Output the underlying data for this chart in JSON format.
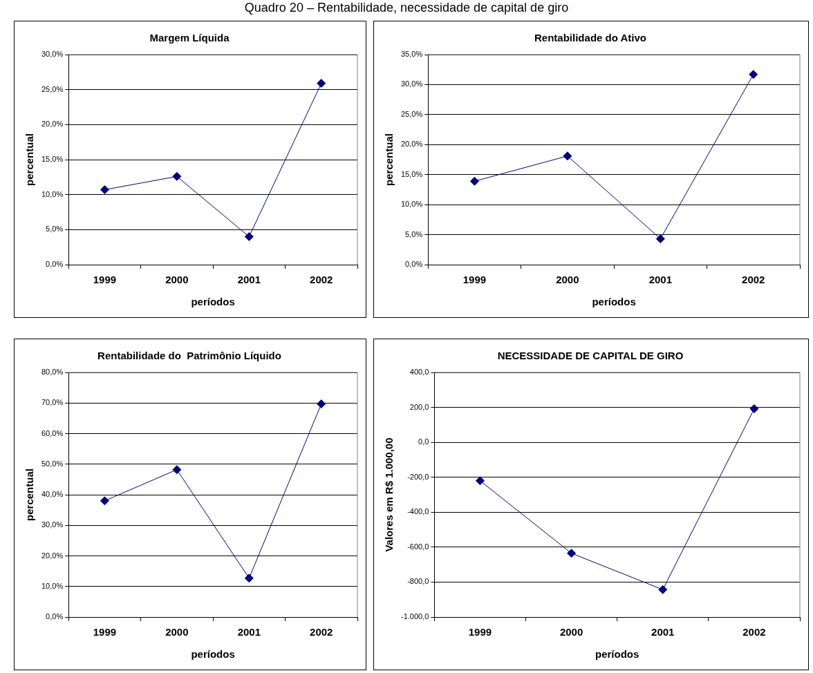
{
  "chart_data": [
    {
      "type": "other",
      "title": "Quadro 20 – Rentabilidade, necessidade de capital de giro"
    },
    {
      "type": "line",
      "title": "Margem Líquida",
      "xlabel": "períodos",
      "ylabel": "percentual",
      "categories": [
        "1999",
        "2000",
        "2001",
        "2002"
      ],
      "series": [
        {
          "color": "#000080",
          "values": [
            10.7,
            12.6,
            4.0,
            25.9
          ]
        }
      ],
      "ylim": [
        0,
        30
      ],
      "yticks": [
        {
          "value": 0,
          "label": "0,0%"
        },
        {
          "value": 5,
          "label": "5,0%"
        },
        {
          "value": 10,
          "label": "10,0%"
        },
        {
          "value": 15,
          "label": "15,0%"
        },
        {
          "value": 20,
          "label": "20,0%"
        },
        {
          "value": 25,
          "label": "25,0%"
        },
        {
          "value": 30,
          "label": "30,0%"
        }
      ],
      "grid": "y",
      "marker": "diamond",
      "line_style": "solid",
      "legend": false
    },
    {
      "type": "line",
      "title": "Rentabilidade do Ativo",
      "xlabel": "períodos",
      "ylabel": "percentual",
      "categories": [
        "1999",
        "2000",
        "2001",
        "2002"
      ],
      "series": [
        {
          "color": "#000080",
          "values": [
            13.9,
            18.1,
            4.3,
            31.7
          ]
        }
      ],
      "ylim": [
        0,
        35
      ],
      "yticks": [
        {
          "value": 0,
          "label": "0,0%"
        },
        {
          "value": 5,
          "label": "5,0%"
        },
        {
          "value": 10,
          "label": "10,0%"
        },
        {
          "value": 15,
          "label": "15,0%"
        },
        {
          "value": 20,
          "label": "20,0%"
        },
        {
          "value": 25,
          "label": "25,0%"
        },
        {
          "value": 30,
          "label": "30,0%"
        },
        {
          "value": 35,
          "label": "35,0%"
        }
      ],
      "grid": "y",
      "marker": "diamond",
      "line_style": "solid",
      "legend": false
    },
    {
      "type": "line",
      "title": "Rentabilidade do  Patrimônio Líquido",
      "xlabel": "períodos",
      "ylabel": "percentual",
      "categories": [
        "1999",
        "2000",
        "2001",
        "2002"
      ],
      "series": [
        {
          "color": "#000080",
          "values": [
            38.0,
            48.2,
            12.7,
            69.7
          ]
        }
      ],
      "ylim": [
        0,
        80
      ],
      "yticks": [
        {
          "value": 0,
          "label": "0,0%"
        },
        {
          "value": 10,
          "label": "10,0%"
        },
        {
          "value": 20,
          "label": "20,0%"
        },
        {
          "value": 30,
          "label": "30,0%"
        },
        {
          "value": 40,
          "label": "40,0%"
        },
        {
          "value": 50,
          "label": "50,0%"
        },
        {
          "value": 60,
          "label": "60,0%"
        },
        {
          "value": 70,
          "label": "70,0%"
        },
        {
          "value": 80,
          "label": "80,0%"
        }
      ],
      "grid": "y",
      "marker": "diamond",
      "line_style": "solid",
      "legend": false
    },
    {
      "type": "line",
      "title": "NECESSIDADE DE CAPITAL DE GIRO",
      "xlabel": "períodos",
      "ylabel": "Valores em R$ 1.000,00",
      "categories": [
        "1999",
        "2000",
        "2001",
        "2002"
      ],
      "series": [
        {
          "color": "#000080",
          "values": [
            -220,
            -635,
            -843,
            192
          ]
        }
      ],
      "ylim": [
        -1000,
        400
      ],
      "yticks": [
        {
          "value": -1000,
          "label": "-1.000,0"
        },
        {
          "value": -800,
          "label": "-800,0"
        },
        {
          "value": -600,
          "label": "-600,0"
        },
        {
          "value": -400,
          "label": "-400,0"
        },
        {
          "value": -200,
          "label": "-200,0"
        },
        {
          "value": 0,
          "label": "0,0"
        },
        {
          "value": 200,
          "label": "200,0"
        },
        {
          "value": 400,
          "label": "400,0"
        }
      ],
      "grid": "y",
      "marker": "diamond",
      "line_style": "solid",
      "legend": false
    }
  ]
}
